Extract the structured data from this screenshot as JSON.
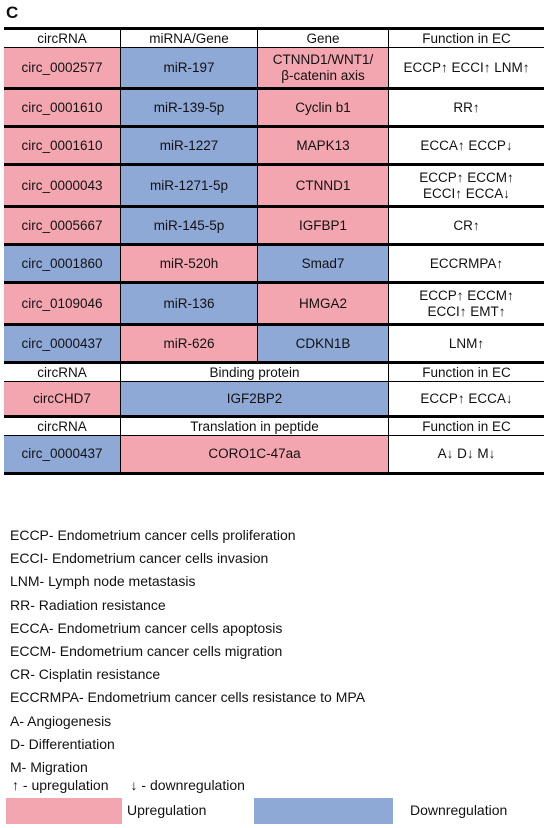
{
  "panel_label": "C",
  "section1": {
    "headers": [
      "circRNA",
      "miRNA/Gene",
      "Gene",
      "Function in EC"
    ],
    "rows": [
      {
        "circ": "circ_0002577",
        "mirna": "miR-197",
        "gene": "CTNND1/WNT1/\nβ-catenin axis",
        "func": "ECCP↑ ECCI↑ LNM↑"
      },
      {
        "circ": "circ_0001610",
        "mirna": "miR-139-5p",
        "gene": "Cyclin b1",
        "func": "RR↑"
      },
      {
        "circ": "circ_0001610",
        "mirna": "miR-1227",
        "gene": "MAPK13",
        "func": "ECCA↑ ECCP↓"
      },
      {
        "circ": "circ_0000043",
        "mirna": "miR-1271-5p",
        "gene": "CTNND1",
        "func": "ECCP↑ ECCM↑\nECCI↑ ECCA↓"
      },
      {
        "circ": "circ_0005667",
        "mirna": "miR-145-5p",
        "gene": "IGFBP1",
        "func": "CR↑"
      },
      {
        "circ": "circ_0001860",
        "mirna": "miR-520h",
        "gene": "Smad7",
        "func": "ECCRMPA↑"
      },
      {
        "circ": "circ_0109046",
        "mirna": "miR-136",
        "gene": "HMGA2",
        "func": "ECCP↑ ECCM↑\nECCI↑ EMT↑"
      },
      {
        "circ": "circ_0000437",
        "mirna": "miR-626",
        "gene": "CDKN1B",
        "func": "LNM↑"
      }
    ]
  },
  "section2": {
    "headers": [
      "circRNA",
      "Binding protein",
      "Function in EC"
    ],
    "row": {
      "circ": "circCHD7",
      "protein": "IGF2BP2",
      "func": "ECCP↑ ECCA↓"
    }
  },
  "section3": {
    "headers": [
      "circRNA",
      "Translation in peptide",
      "Function in EC"
    ],
    "row": {
      "circ": "circ_0000437",
      "peptide": "CORO1C-47aa",
      "func": "A↓ D↓ M↓"
    }
  },
  "abbreviations": [
    "ECCP- Endometrium cancer cells proliferation",
    "ECCI- Endometrium cancer cells invasion",
    "LNM- Lymph node metastasis",
    "RR- Radiation resistance",
    "ECCA- Endometrium cancer cells apoptosis",
    "ECCM- Endometrium cancer cells migration",
    "CR- Cisplatin resistance",
    "ECCRMPA- Endometrium cancer cells resistance to MPA",
    "A- Angiogenesis",
    "D- Differentiation",
    "M- Migration"
  ],
  "arrow_legend": {
    "up": "↑ - upregulation",
    "down": "↓ - downregulation"
  },
  "color_legend": {
    "up_label": "Upregulation",
    "down_label": "Downregulation",
    "up_color": "#f4a6b0",
    "down_color": "#8fa9d6"
  }
}
